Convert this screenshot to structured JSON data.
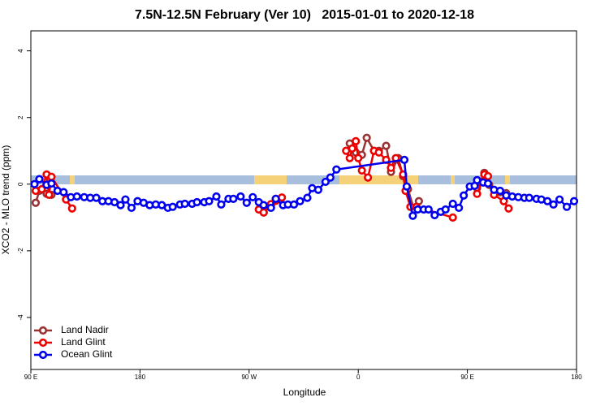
{
  "chart_data": {
    "type": "line",
    "title": "7.5N-12.5N February (Ver 10)   2015-01-01 to 2020-12-18",
    "xlabel": "Longitude",
    "ylabel": "XCO2 - MLO trend (ppm)",
    "xlim": [
      90,
      540
    ],
    "ylim": [
      -5.56,
      4.6
    ],
    "xticks": [
      {
        "value": 90,
        "label": "90 E"
      },
      180,
      {
        "value": 270,
        "label": "90 W"
      },
      {
        "value": 360,
        "label": "0"
      },
      {
        "value": 450,
        "label": "90 E"
      },
      {
        "value": 540,
        "label": "180"
      }
    ],
    "yticks": [
      -4,
      -2,
      0,
      2,
      4
    ],
    "legend": "bottomleft",
    "series": [
      {
        "name": "Land Nadir",
        "color": "#993333",
        "x": [
          94,
          97,
          103,
          107,
          278,
          282,
          288,
          292,
          349,
          353,
          358,
          363,
          367,
          373,
          377,
          383,
          387,
          393,
          397,
          401,
          406,
          410,
          453,
          458,
          464,
          468,
          477,
          482
        ],
        "values": [
          -0.56,
          -0.2,
          -0.29,
          -0.32,
          null,
          -0.85,
          -0.63,
          -0.44,
          null,
          1.22,
          0.95,
          0.88,
          1.39,
          1.0,
          1.0,
          1.15,
          0.37,
          0.78,
          0.24,
          -0.15,
          -0.76,
          -0.51,
          null,
          -0.12,
          0.34,
          -0.02,
          -0.24,
          -0.27
        ]
      },
      {
        "name": "Land Glint",
        "color": "#ee0000",
        "x": [
          94,
          99,
          103,
          105,
          107,
          119,
          124,
          273,
          278,
          282,
          288,
          292,
          297,
          349,
          350,
          353,
          355,
          358,
          360,
          363,
          368,
          373,
          377,
          383,
          387,
          391,
          397,
          399,
          403,
          408,
          438,
          453,
          458,
          464,
          467,
          472,
          480,
          484
        ],
        "values": [
          -0.2,
          -0.15,
          0.29,
          -0.32,
          0.22,
          -0.46,
          -0.73,
          null,
          -0.76,
          -0.85,
          -0.6,
          -0.5,
          -0.4,
          null,
          1.0,
          0.78,
          1.07,
          1.29,
          0.78,
          0.41,
          0.2,
          1.0,
          0.95,
          0.73,
          0.49,
          0.78,
          0.29,
          -0.2,
          -0.68,
          -0.68,
          -1.0,
          null,
          -0.29,
          0.29,
          0.24,
          -0.32,
          -0.51,
          -0.73
        ]
      },
      {
        "name": "Ocean Glint",
        "color": "#0000ee",
        "x": [
          93,
          97,
          103,
          107,
          112,
          117,
          123,
          128,
          134,
          139,
          144,
          149,
          154,
          159,
          164,
          168,
          173,
          178,
          183,
          188,
          193,
          198,
          203,
          207,
          213,
          217,
          223,
          227,
          233,
          237,
          243,
          247,
          253,
          257,
          263,
          268,
          273,
          278,
          282,
          288,
          292,
          298,
          302,
          307,
          312,
          318,
          322,
          327,
          333,
          337,
          342,
          398,
          400,
          405,
          409,
          414,
          418,
          423,
          428,
          432,
          438,
          443,
          447,
          452,
          456,
          458,
          463,
          467,
          472,
          477,
          482,
          487,
          492,
          497,
          501,
          507,
          511,
          516,
          521,
          526,
          532,
          538
        ],
        "values": [
          0.0,
          0.15,
          -0.02,
          0.02,
          -0.2,
          -0.24,
          -0.39,
          -0.37,
          -0.39,
          -0.41,
          -0.41,
          -0.51,
          -0.51,
          -0.54,
          -0.63,
          -0.46,
          -0.71,
          -0.51,
          -0.56,
          -0.63,
          -0.61,
          -0.63,
          -0.71,
          -0.68,
          -0.61,
          -0.59,
          -0.59,
          -0.54,
          -0.54,
          -0.51,
          -0.37,
          -0.61,
          -0.44,
          -0.44,
          -0.37,
          -0.56,
          -0.39,
          -0.54,
          -0.63,
          -0.71,
          -0.44,
          -0.63,
          -0.61,
          -0.61,
          -0.51,
          -0.41,
          -0.12,
          -0.17,
          0.07,
          0.2,
          0.44,
          0.73,
          -0.07,
          -0.95,
          -0.76,
          -0.76,
          -0.76,
          -0.93,
          -0.83,
          -0.76,
          -0.59,
          -0.71,
          -0.34,
          -0.07,
          -0.05,
          0.12,
          0.05,
          0.02,
          -0.17,
          -0.2,
          -0.34,
          -0.37,
          -0.39,
          -0.41,
          -0.41,
          -0.44,
          -0.46,
          -0.51,
          -0.61,
          -0.46,
          -0.68,
          -0.51
        ]
      }
    ]
  }
}
